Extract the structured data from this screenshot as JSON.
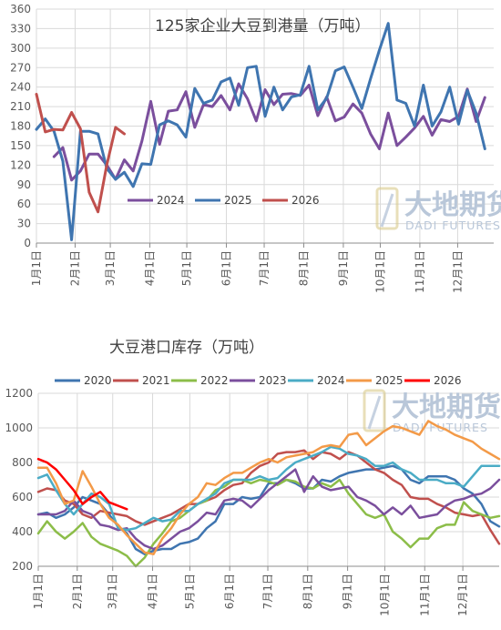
{
  "watermark": {
    "name": "大地期货",
    "sub": "DADI FUTURES"
  },
  "chart_data": [
    {
      "type": "line",
      "title": "125家企业大豆到港量（万吨）",
      "xlabel": "",
      "ylabel": "",
      "ylim": [
        0,
        360
      ],
      "yticks": [
        0,
        30,
        60,
        90,
        120,
        150,
        180,
        210,
        240,
        270,
        300,
        330,
        360
      ],
      "xlim": [
        1,
        53
      ],
      "categories": [
        "1月1日",
        "2月1日",
        "3月1日",
        "4月1日",
        "5月1日",
        "6月1日",
        "7月1日",
        "8月1日",
        "9月1日",
        "10月1日",
        "11月1日",
        "12月1日"
      ],
      "category_weeks": [
        1,
        5.4,
        9.4,
        13.9,
        18.1,
        22.6,
        26.9,
        31.4,
        35.9,
        40.1,
        44.6,
        48.9
      ],
      "grid": true,
      "legend": "bottom-center",
      "series": [
        {
          "name": "2024",
          "color": "#7b4f9d",
          "x": [
            3,
            4,
            5,
            6,
            7,
            8,
            9,
            10,
            11,
            12,
            13,
            14,
            15,
            16,
            17,
            18,
            19,
            20,
            21,
            22,
            23,
            24,
            25,
            26,
            27,
            28,
            29,
            30,
            31,
            32,
            33,
            34,
            35,
            36,
            37,
            38,
            39,
            40,
            41,
            42,
            43,
            44,
            45,
            46,
            47,
            48,
            49,
            50,
            51,
            52
          ],
          "values": [
            133,
            147,
            97,
            111,
            137,
            137,
            120,
            98,
            128,
            111,
            157,
            218,
            152,
            203,
            205,
            233,
            178,
            213,
            210,
            227,
            205,
            245,
            222,
            188,
            236,
            213,
            229,
            230,
            227,
            243,
            196,
            225,
            188,
            194,
            214,
            200,
            168,
            145,
            200,
            150,
            163,
            177,
            195,
            166,
            190,
            187,
            195,
            237,
            187,
            224
          ]
        },
        {
          "name": "2025",
          "color": "#3f75b0",
          "x": [
            1,
            2,
            3,
            4,
            5,
            6,
            7,
            8,
            9,
            10,
            11,
            12,
            13,
            14,
            15,
            16,
            17,
            18,
            19,
            20,
            21,
            22,
            23,
            24,
            25,
            26,
            27,
            28,
            29,
            30,
            31,
            32,
            33,
            34,
            35,
            36,
            37,
            38,
            39,
            40,
            41,
            42,
            43,
            44,
            45,
            46,
            47,
            48,
            49,
            50,
            51,
            52
          ],
          "values": [
            175,
            191,
            172,
            126,
            5,
            172,
            172,
            168,
            115,
            98,
            109,
            87,
            122,
            121,
            182,
            188,
            182,
            163,
            238,
            215,
            220,
            248,
            254,
            212,
            270,
            272,
            195,
            240,
            205,
            225,
            228,
            272,
            205,
            223,
            265,
            271,
            240,
            207,
            253,
            297,
            338,
            220,
            215,
            180,
            243,
            180,
            202,
            240,
            183,
            235,
            200,
            145
          ]
        },
        {
          "name": "2026",
          "color": "#c0504d",
          "x": [
            1,
            2,
            3,
            4,
            5,
            6,
            7,
            8,
            9,
            10,
            11
          ],
          "values": [
            229,
            171,
            175,
            174,
            201,
            176,
            78,
            48,
            120,
            178,
            168
          ]
        }
      ]
    },
    {
      "type": "line",
      "title": "大豆港口库存（万吨）",
      "xlabel": "",
      "ylabel": "",
      "ylim": [
        200,
        1200
      ],
      "yticks": [
        200,
        400,
        600,
        800,
        1000,
        1200
      ],
      "xlim": [
        1,
        53
      ],
      "categories": [
        "1月1日",
        "2月1日",
        "3月1日",
        "4月1日",
        "5月1日",
        "6月1日",
        "7月1日",
        "8月1日",
        "9月1日",
        "10月1日",
        "11月1日",
        "12月1日"
      ],
      "category_weeks": [
        1,
        5.4,
        9.4,
        13.9,
        18.1,
        22.6,
        26.9,
        31.4,
        35.9,
        40.1,
        44.6,
        48.9
      ],
      "grid": true,
      "legend": "top",
      "series": [
        {
          "name": "2020",
          "color": "#3f75b0",
          "x": [
            1,
            2,
            3,
            4,
            5,
            6,
            7,
            8,
            9,
            10,
            11,
            12,
            13,
            14,
            15,
            16,
            17,
            18,
            19,
            20,
            21,
            22,
            23,
            24,
            25,
            26,
            27,
            28,
            29,
            30,
            31,
            32,
            33,
            34,
            35,
            36,
            37,
            38,
            39,
            40,
            41,
            42,
            43,
            44,
            45,
            46,
            47,
            48,
            49,
            50,
            51,
            52,
            53
          ],
          "values": [
            500,
            510,
            480,
            500,
            540,
            600,
            580,
            560,
            500,
            430,
            390,
            300,
            270,
            290,
            300,
            300,
            330,
            340,
            360,
            420,
            460,
            560,
            560,
            600,
            590,
            600,
            680,
            680,
            700,
            680,
            650,
            650,
            700,
            690,
            720,
            740,
            750,
            760,
            760,
            770,
            780,
            760,
            700,
            680,
            720,
            720,
            720,
            700,
            650,
            620,
            560,
            460,
            430
          ]
        },
        {
          "name": "2021",
          "color": "#c0504d",
          "x": [
            1,
            2,
            3,
            4,
            5,
            6,
            7,
            8,
            9,
            10,
            11,
            12,
            13,
            14,
            15,
            16,
            17,
            18,
            19,
            20,
            21,
            22,
            23,
            24,
            25,
            26,
            27,
            28,
            29,
            30,
            31,
            32,
            33,
            34,
            35,
            36,
            37,
            38,
            39,
            40,
            41,
            42,
            43,
            44,
            45,
            46,
            47,
            48,
            49,
            50,
            51,
            52,
            53
          ],
          "values": [
            630,
            650,
            640,
            580,
            560,
            500,
            480,
            520,
            510,
            500,
            490,
            460,
            440,
            460,
            480,
            500,
            530,
            560,
            560,
            580,
            600,
            640,
            670,
            680,
            740,
            780,
            800,
            850,
            860,
            860,
            870,
            820,
            860,
            850,
            820,
            860,
            840,
            800,
            760,
            740,
            700,
            670,
            600,
            590,
            590,
            560,
            540,
            510,
            500,
            490,
            500,
            410,
            330
          ]
        },
        {
          "name": "2022",
          "color": "#8cbd49",
          "x": [
            1,
            2,
            3,
            4,
            5,
            6,
            7,
            8,
            9,
            10,
            11,
            12,
            13,
            14,
            15,
            16,
            17,
            18,
            19,
            20,
            21,
            22,
            23,
            24,
            25,
            26,
            27,
            28,
            29,
            30,
            31,
            32,
            33,
            34,
            35,
            36,
            37,
            38,
            39,
            40,
            41,
            42,
            43,
            44,
            45,
            46,
            47,
            48,
            49,
            50,
            51,
            52,
            53
          ],
          "values": [
            390,
            460,
            400,
            360,
            400,
            450,
            370,
            330,
            310,
            290,
            260,
            200,
            250,
            330,
            390,
            460,
            480,
            520,
            560,
            580,
            640,
            660,
            700,
            700,
            680,
            700,
            690,
            670,
            700,
            690,
            660,
            650,
            680,
            660,
            700,
            620,
            560,
            500,
            480,
            500,
            400,
            360,
            310,
            360,
            360,
            420,
            440,
            440,
            570,
            520,
            500,
            480,
            490
          ]
        },
        {
          "name": "2023",
          "color": "#7b4f9d",
          "x": [
            1,
            2,
            3,
            4,
            5,
            6,
            7,
            8,
            9,
            10,
            11,
            12,
            13,
            14,
            15,
            16,
            17,
            18,
            19,
            20,
            21,
            22,
            23,
            24,
            25,
            26,
            27,
            28,
            29,
            30,
            31,
            32,
            33,
            34,
            35,
            36,
            37,
            38,
            39,
            40,
            41,
            42,
            43,
            44,
            45,
            46,
            47,
            48,
            49,
            50,
            51,
            52,
            53
          ],
          "values": [
            500,
            500,
            500,
            520,
            580,
            520,
            500,
            440,
            430,
            410,
            420,
            360,
            320,
            300,
            320,
            360,
            400,
            420,
            460,
            510,
            500,
            580,
            590,
            580,
            540,
            590,
            640,
            680,
            720,
            760,
            630,
            720,
            660,
            640,
            650,
            660,
            600,
            580,
            550,
            500,
            540,
            500,
            550,
            480,
            490,
            500,
            550,
            580,
            590,
            610,
            620,
            650,
            700
          ]
        },
        {
          "name": "2024",
          "color": "#4bacc6",
          "x": [
            1,
            2,
            3,
            4,
            5,
            6,
            7,
            8,
            9,
            10,
            11,
            12,
            13,
            14,
            15,
            16,
            17,
            18,
            19,
            20,
            21,
            22,
            23,
            24,
            25,
            26,
            27,
            28,
            29,
            30,
            31,
            32,
            33,
            34,
            35,
            36,
            37,
            38,
            39,
            40,
            41,
            42,
            43,
            44,
            45,
            46,
            47,
            48,
            49,
            50,
            51,
            52,
            53
          ],
          "values": [
            710,
            730,
            640,
            560,
            500,
            560,
            620,
            600,
            560,
            420,
            410,
            420,
            450,
            480,
            460,
            470,
            520,
            520,
            560,
            590,
            620,
            680,
            700,
            700,
            700,
            720,
            700,
            710,
            760,
            800,
            820,
            840,
            860,
            890,
            880,
            850,
            840,
            820,
            780,
            780,
            800,
            760,
            740,
            700,
            700,
            700,
            680,
            680,
            660,
            720,
            780,
            780,
            780
          ]
        },
        {
          "name": "2025",
          "color": "#f39a48",
          "x": [
            1,
            2,
            3,
            4,
            5,
            6,
            7,
            8,
            9,
            10,
            11,
            12,
            13,
            14,
            15,
            16,
            17,
            18,
            19,
            20,
            21,
            22,
            23,
            24,
            25,
            26,
            27,
            28,
            29,
            30,
            31,
            32,
            33,
            34,
            35,
            36,
            37,
            38,
            39,
            40,
            41,
            42,
            43,
            44,
            45,
            46,
            47,
            48,
            49,
            50,
            51,
            52,
            53
          ],
          "values": [
            770,
            770,
            680,
            560,
            580,
            750,
            660,
            560,
            480,
            440,
            380,
            330,
            280,
            270,
            360,
            420,
            500,
            560,
            600,
            680,
            670,
            710,
            740,
            740,
            770,
            800,
            820,
            800,
            830,
            840,
            850,
            860,
            890,
            900,
            890,
            960,
            970,
            900,
            940,
            980,
            1010,
            1000,
            980,
            960,
            1040,
            1010,
            990,
            960,
            940,
            920,
            880,
            850,
            820
          ]
        },
        {
          "name": "2026",
          "color": "#ff0000",
          "x": [
            1,
            2,
            3,
            4,
            5,
            6,
            7,
            8,
            9,
            10,
            11
          ],
          "values": [
            820,
            800,
            760,
            700,
            640,
            560,
            600,
            630,
            570,
            550,
            530
          ]
        }
      ]
    }
  ]
}
